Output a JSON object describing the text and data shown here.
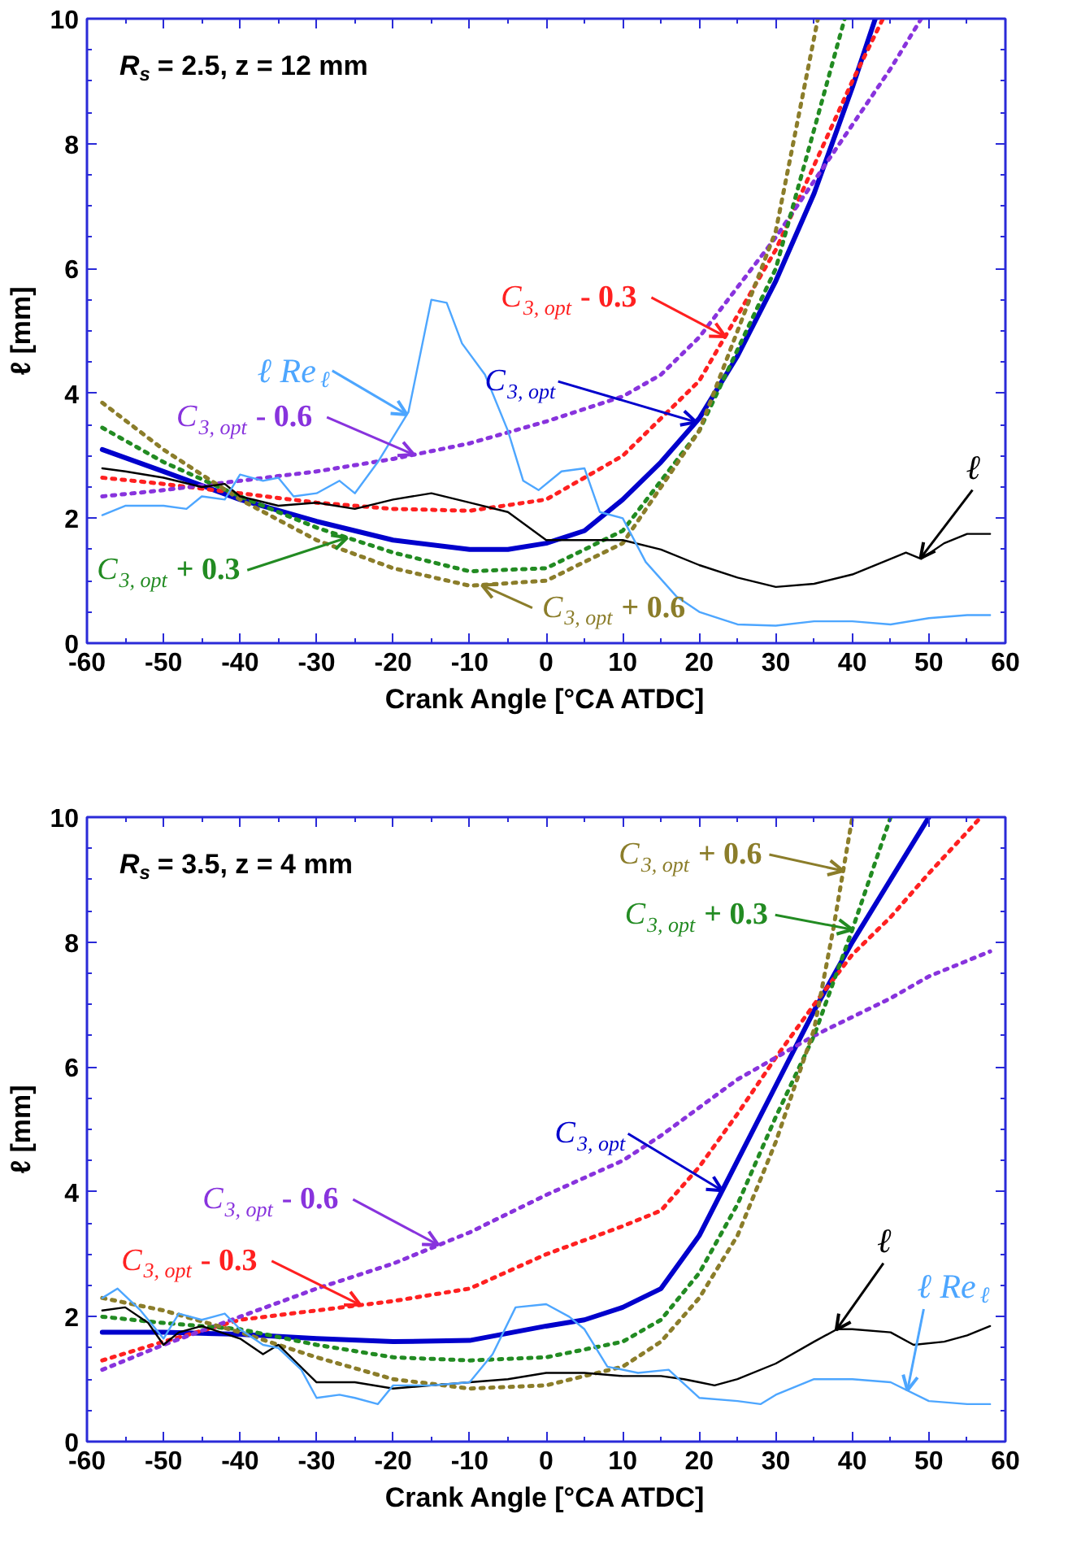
{
  "chart_data": [
    {
      "type": "line",
      "xlabel": "Crank Angle [°CA ATDC]",
      "ylabel": "ℓ [mm]",
      "xlim": [
        -60,
        60
      ],
      "ylim": [
        0,
        10
      ],
      "xticks": [
        -60,
        -50,
        -40,
        -30,
        -20,
        -10,
        0,
        10,
        20,
        30,
        40,
        50,
        60
      ],
      "yticks": [
        0,
        2,
        4,
        6,
        8,
        10
      ],
      "grid": false,
      "annotations": [
        "R$_{s}$ = 2.5, z = 12 mm",
        {
          "text": "C$_{3, opt}$",
          "x": 19.6,
          "y": 3.54
        },
        {
          "text": "C$_{3, opt}$ - 0.3",
          "x": 23.4,
          "y": 4.91
        },
        {
          "text": "C$_{3, opt}$ - 0.6",
          "x": -17.3,
          "y": 3.02
        },
        {
          "text": "C$_{3, opt}$ + 0.3",
          "x": -26,
          "y": 1.69
        },
        {
          "text": "C$_{3, opt}$ + 0.6",
          "x": -8.4,
          "y": 0.93
        },
        {
          "text": "ℓ",
          "x": 48.9,
          "y": 1.36
        },
        {
          "text": "ℓ Re$_{ℓ}$",
          "x": -18.2,
          "y": 3.66
        }
      ],
      "series": [
        {
          "color": "#0000cc",
          "line_style": "solid",
          "x": [
            -58,
            -50,
            -40,
            -30,
            -20,
            -10,
            -5,
            0,
            5,
            10,
            15,
            20,
            25,
            30,
            35,
            40,
            43
          ],
          "values": [
            3.1,
            2.75,
            2.3,
            1.95,
            1.65,
            1.5,
            1.5,
            1.6,
            1.8,
            2.3,
            2.9,
            3.6,
            4.6,
            5.8,
            7.2,
            8.9,
            10
          ]
        },
        {
          "color": "#ff2020",
          "line_style": "dotted",
          "x": [
            -58,
            -50,
            -40,
            -30,
            -20,
            -10,
            0,
            10,
            20,
            30,
            40,
            44
          ],
          "values": [
            2.65,
            2.55,
            2.4,
            2.25,
            2.15,
            2.12,
            2.3,
            3.0,
            4.2,
            6.3,
            9.0,
            10
          ]
        },
        {
          "color": "#8833dd",
          "line_style": "dotted",
          "x": [
            -58,
            -50,
            -40,
            -30,
            -20,
            -10,
            0,
            10,
            15,
            20,
            25,
            30,
            35,
            40,
            45,
            49
          ],
          "values": [
            2.35,
            2.45,
            2.6,
            2.75,
            2.95,
            3.2,
            3.55,
            3.95,
            4.3,
            4.9,
            5.7,
            6.5,
            7.4,
            8.3,
            9.2,
            10
          ]
        },
        {
          "color": "#228b22",
          "line_style": "dotted",
          "x": [
            -58,
            -50,
            -40,
            -30,
            -20,
            -10,
            0,
            10,
            20,
            30,
            39
          ],
          "values": [
            3.45,
            2.9,
            2.35,
            1.85,
            1.45,
            1.15,
            1.2,
            1.8,
            3.4,
            6.0,
            10
          ]
        },
        {
          "color": "#8b7d2a",
          "line_style": "dotted",
          "x": [
            -58,
            -50,
            -40,
            -30,
            -20,
            -10,
            0,
            10,
            20,
            30,
            35.5
          ],
          "values": [
            3.85,
            3.1,
            2.3,
            1.65,
            1.2,
            0.92,
            1.0,
            1.6,
            3.4,
            6.6,
            10
          ]
        },
        {
          "color": "#000000",
          "line_style": "solid",
          "x": [
            -58,
            -55,
            -50,
            -45,
            -42,
            -40,
            -35,
            -30,
            -25,
            -20,
            -15,
            -10,
            -5,
            0,
            5,
            10,
            15,
            20,
            25,
            30,
            35,
            40,
            45,
            47,
            49,
            52,
            55,
            58
          ],
          "values": [
            2.8,
            2.75,
            2.65,
            2.5,
            2.55,
            2.35,
            2.2,
            2.25,
            2.15,
            2.3,
            2.4,
            2.25,
            2.1,
            1.65,
            1.65,
            1.65,
            1.5,
            1.25,
            1.05,
            0.9,
            0.95,
            1.1,
            1.35,
            1.45,
            1.35,
            1.6,
            1.75,
            1.75
          ]
        },
        {
          "color": "#4da6ff",
          "line_style": "solid",
          "x": [
            -58,
            -55,
            -50,
            -47,
            -45,
            -42,
            -40,
            -37,
            -35,
            -33,
            -30,
            -27,
            -25,
            -22,
            -20,
            -18,
            -16,
            -15,
            -13,
            -11,
            -8,
            -5,
            -3,
            -1,
            2,
            5,
            7,
            10,
            13,
            17,
            20,
            25,
            30,
            35,
            40,
            45,
            50,
            55,
            58
          ],
          "values": [
            2.05,
            2.2,
            2.2,
            2.15,
            2.35,
            2.3,
            2.7,
            2.6,
            2.65,
            2.35,
            2.4,
            2.6,
            2.4,
            2.9,
            3.3,
            3.7,
            4.9,
            5.5,
            5.45,
            4.8,
            4.3,
            3.4,
            2.6,
            2.45,
            2.75,
            2.8,
            2.1,
            2.0,
            1.3,
            0.75,
            0.5,
            0.3,
            0.28,
            0.35,
            0.35,
            0.3,
            0.4,
            0.45,
            0.45
          ]
        }
      ]
    },
    {
      "type": "line",
      "xlabel": "Crank Angle [°CA ATDC]",
      "ylabel": "ℓ [mm]",
      "xlim": [
        -60,
        60
      ],
      "ylim": [
        0,
        10
      ],
      "xticks": [
        -60,
        -50,
        -40,
        -30,
        -20,
        -10,
        0,
        10,
        20,
        30,
        40,
        50,
        60
      ],
      "yticks": [
        0,
        2,
        4,
        6,
        8,
        10
      ],
      "grid": false,
      "annotations": [
        "R$_{s}$ = 3.5, z = 4 mm",
        {
          "text": "C$_{3, opt}$",
          "x": 23,
          "y": 4.02
        },
        {
          "text": "C$_{3, opt}$ - 0.3",
          "x": -24.3,
          "y": 2.19
        },
        {
          "text": "C$_{3, opt}$ - 0.6",
          "x": -14.1,
          "y": 3.15
        },
        {
          "text": "C$_{3, opt}$ + 0.3",
          "x": 40,
          "y": 8.2
        },
        {
          "text": "C$_{3, opt}$ + 0.6",
          "x": 38.8,
          "y": 9.14
        },
        {
          "text": "ℓ",
          "x": 37.9,
          "y": 1.79
        },
        {
          "text": "ℓ Re$_{ℓ}$",
          "x": 47.2,
          "y": 0.82
        }
      ],
      "series": [
        {
          "color": "#0000cc",
          "line_style": "solid",
          "x": [
            -58,
            -50,
            -40,
            -30,
            -20,
            -10,
            0,
            5,
            10,
            15,
            20,
            25,
            30,
            35,
            40,
            45,
            50
          ],
          "values": [
            1.75,
            1.75,
            1.72,
            1.65,
            1.6,
            1.62,
            1.85,
            1.95,
            2.15,
            2.45,
            3.3,
            4.5,
            5.7,
            6.9,
            8.0,
            9.0,
            10
          ]
        },
        {
          "color": "#ff2020",
          "line_style": "dotted",
          "x": [
            -58,
            -50,
            -40,
            -30,
            -20,
            -10,
            0,
            10,
            15,
            20,
            25,
            30,
            35,
            40,
            45,
            50,
            56.8
          ],
          "values": [
            1.3,
            1.6,
            1.95,
            2.1,
            2.25,
            2.45,
            3.0,
            3.45,
            3.7,
            4.4,
            5.25,
            6.15,
            7.0,
            7.8,
            8.4,
            9.1,
            10
          ]
        },
        {
          "color": "#8833dd",
          "line_style": "dotted",
          "x": [
            -58,
            -50,
            -40,
            -30,
            -20,
            -10,
            0,
            10,
            15,
            20,
            25,
            30,
            35,
            40,
            45,
            50,
            58
          ],
          "values": [
            1.15,
            1.55,
            2.0,
            2.45,
            2.85,
            3.35,
            3.95,
            4.5,
            4.9,
            5.35,
            5.8,
            6.15,
            6.5,
            6.8,
            7.1,
            7.45,
            7.85
          ]
        },
        {
          "color": "#228b22",
          "line_style": "dotted",
          "x": [
            -58,
            -50,
            -40,
            -30,
            -20,
            -10,
            0,
            10,
            15,
            20,
            25,
            30,
            35,
            40,
            45
          ],
          "values": [
            2.0,
            1.9,
            1.8,
            1.55,
            1.35,
            1.3,
            1.35,
            1.6,
            1.95,
            2.7,
            3.8,
            5.2,
            6.5,
            8.2,
            10
          ]
        },
        {
          "color": "#8b7d2a",
          "line_style": "dotted",
          "x": [
            -58,
            -50,
            -40,
            -30,
            -20,
            -10,
            0,
            10,
            15,
            20,
            25,
            30,
            35,
            37.5,
            40
          ],
          "values": [
            2.3,
            2.1,
            1.75,
            1.35,
            1.0,
            0.85,
            0.9,
            1.2,
            1.6,
            2.3,
            3.3,
            4.8,
            6.6,
            8.2,
            10
          ]
        },
        {
          "color": "#000000",
          "line_style": "solid",
          "x": [
            -58,
            -55,
            -52,
            -50,
            -48,
            -45,
            -40,
            -37,
            -35,
            -30,
            -25,
            -20,
            -15,
            -10,
            -5,
            0,
            5,
            10,
            15,
            18,
            20,
            22,
            25,
            30,
            35,
            38,
            40,
            45,
            48,
            52,
            55,
            58
          ],
          "values": [
            2.1,
            2.15,
            1.9,
            1.55,
            1.75,
            1.85,
            1.65,
            1.4,
            1.55,
            0.95,
            0.95,
            0.85,
            0.9,
            0.95,
            1.0,
            1.1,
            1.1,
            1.05,
            1.05,
            1.0,
            0.95,
            0.9,
            1.0,
            1.25,
            1.6,
            1.8,
            1.8,
            1.75,
            1.55,
            1.6,
            1.7,
            1.85
          ]
        },
        {
          "color": "#4da6ff",
          "line_style": "solid",
          "x": [
            -58,
            -56,
            -53,
            -50,
            -48,
            -45,
            -42,
            -40,
            -37,
            -35,
            -32,
            -30,
            -27,
            -25,
            -22,
            -20,
            -15,
            -10,
            -7,
            -4,
            0,
            3,
            5,
            8,
            12,
            16,
            20,
            25,
            28,
            30,
            35,
            40,
            45,
            50,
            55,
            58
          ],
          "values": [
            2.3,
            2.45,
            2.1,
            1.65,
            2.05,
            1.95,
            2.05,
            1.8,
            1.55,
            1.5,
            1.15,
            0.7,
            0.75,
            0.7,
            0.6,
            0.9,
            0.9,
            0.95,
            1.4,
            2.15,
            2.2,
            2.0,
            1.8,
            1.2,
            1.1,
            1.15,
            0.7,
            0.65,
            0.6,
            0.75,
            1.0,
            1.0,
            0.95,
            0.65,
            0.6,
            0.6
          ]
        }
      ]
    }
  ]
}
